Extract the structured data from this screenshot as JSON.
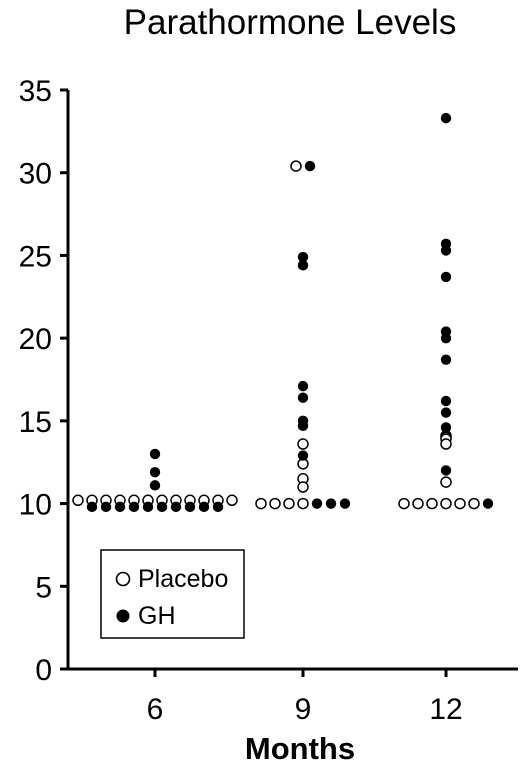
{
  "chart_data": {
    "type": "scatter",
    "title": "Parathormone Levels",
    "xlabel": "Months",
    "ylabel": "",
    "ylim": [
      0,
      35
    ],
    "yticks": [
      "0",
      "5",
      "10",
      "15",
      "20",
      "25",
      "30",
      "35"
    ],
    "categories": [
      "6",
      "9",
      "12"
    ],
    "grid": false,
    "legend_position": "bottom-left",
    "series": [
      {
        "name": "Placebo",
        "marker": "open-circle",
        "points": [
          {
            "x": "6",
            "y": 10.2
          },
          {
            "x": "6",
            "y": 10.2
          },
          {
            "x": "6",
            "y": 10.2
          },
          {
            "x": "6",
            "y": 10.2
          },
          {
            "x": "6",
            "y": 10.2
          },
          {
            "x": "6",
            "y": 10.2
          },
          {
            "x": "6",
            "y": 10.2
          },
          {
            "x": "6",
            "y": 10.2
          },
          {
            "x": "6",
            "y": 10.2
          },
          {
            "x": "6",
            "y": 10.2
          },
          {
            "x": "6",
            "y": 10.2
          },
          {
            "x": "6",
            "y": 10.2
          },
          {
            "x": "9",
            "y": 30.4
          },
          {
            "x": "9",
            "y": 13.6
          },
          {
            "x": "9",
            "y": 12.4
          },
          {
            "x": "9",
            "y": 11.5
          },
          {
            "x": "9",
            "y": 11.0
          },
          {
            "x": "9",
            "y": 10.0
          },
          {
            "x": "9",
            "y": 10.0
          },
          {
            "x": "9",
            "y": 10.0
          },
          {
            "x": "9",
            "y": 10.0
          },
          {
            "x": "12",
            "y": 14.1
          },
          {
            "x": "12",
            "y": 14.0
          },
          {
            "x": "12",
            "y": 13.9
          },
          {
            "x": "12",
            "y": 13.6
          },
          {
            "x": "12",
            "y": 11.3
          },
          {
            "x": "12",
            "y": 10.0
          },
          {
            "x": "12",
            "y": 10.0
          },
          {
            "x": "12",
            "y": 10.0
          },
          {
            "x": "12",
            "y": 10.0
          },
          {
            "x": "12",
            "y": 10.0
          },
          {
            "x": "12",
            "y": 10.0
          }
        ]
      },
      {
        "name": "GH",
        "marker": "filled-circle",
        "points": [
          {
            "x": "6",
            "y": 13.0
          },
          {
            "x": "6",
            "y": 11.9
          },
          {
            "x": "6",
            "y": 11.1
          },
          {
            "x": "6",
            "y": 9.8
          },
          {
            "x": "6",
            "y": 9.8
          },
          {
            "x": "6",
            "y": 9.8
          },
          {
            "x": "6",
            "y": 9.8
          },
          {
            "x": "6",
            "y": 9.8
          },
          {
            "x": "6",
            "y": 9.8
          },
          {
            "x": "6",
            "y": 9.8
          },
          {
            "x": "6",
            "y": 9.8
          },
          {
            "x": "6",
            "y": 9.8
          },
          {
            "x": "6",
            "y": 9.8
          },
          {
            "x": "9",
            "y": 30.4
          },
          {
            "x": "9",
            "y": 24.9
          },
          {
            "x": "9",
            "y": 24.4
          },
          {
            "x": "9",
            "y": 17.1
          },
          {
            "x": "9",
            "y": 16.4
          },
          {
            "x": "9",
            "y": 15.0
          },
          {
            "x": "9",
            "y": 14.7
          },
          {
            "x": "9",
            "y": 12.9
          },
          {
            "x": "9",
            "y": 10.0
          },
          {
            "x": "9",
            "y": 10.0
          },
          {
            "x": "9",
            "y": 10.0
          },
          {
            "x": "12",
            "y": 33.3
          },
          {
            "x": "12",
            "y": 25.7
          },
          {
            "x": "12",
            "y": 25.3
          },
          {
            "x": "12",
            "y": 23.7
          },
          {
            "x": "12",
            "y": 20.4
          },
          {
            "x": "12",
            "y": 20.0
          },
          {
            "x": "12",
            "y": 18.7
          },
          {
            "x": "12",
            "y": 16.2
          },
          {
            "x": "12",
            "y": 15.5
          },
          {
            "x": "12",
            "y": 14.6
          },
          {
            "x": "12",
            "y": 12.0
          },
          {
            "x": "12",
            "y": 10.0
          }
        ]
      }
    ]
  }
}
